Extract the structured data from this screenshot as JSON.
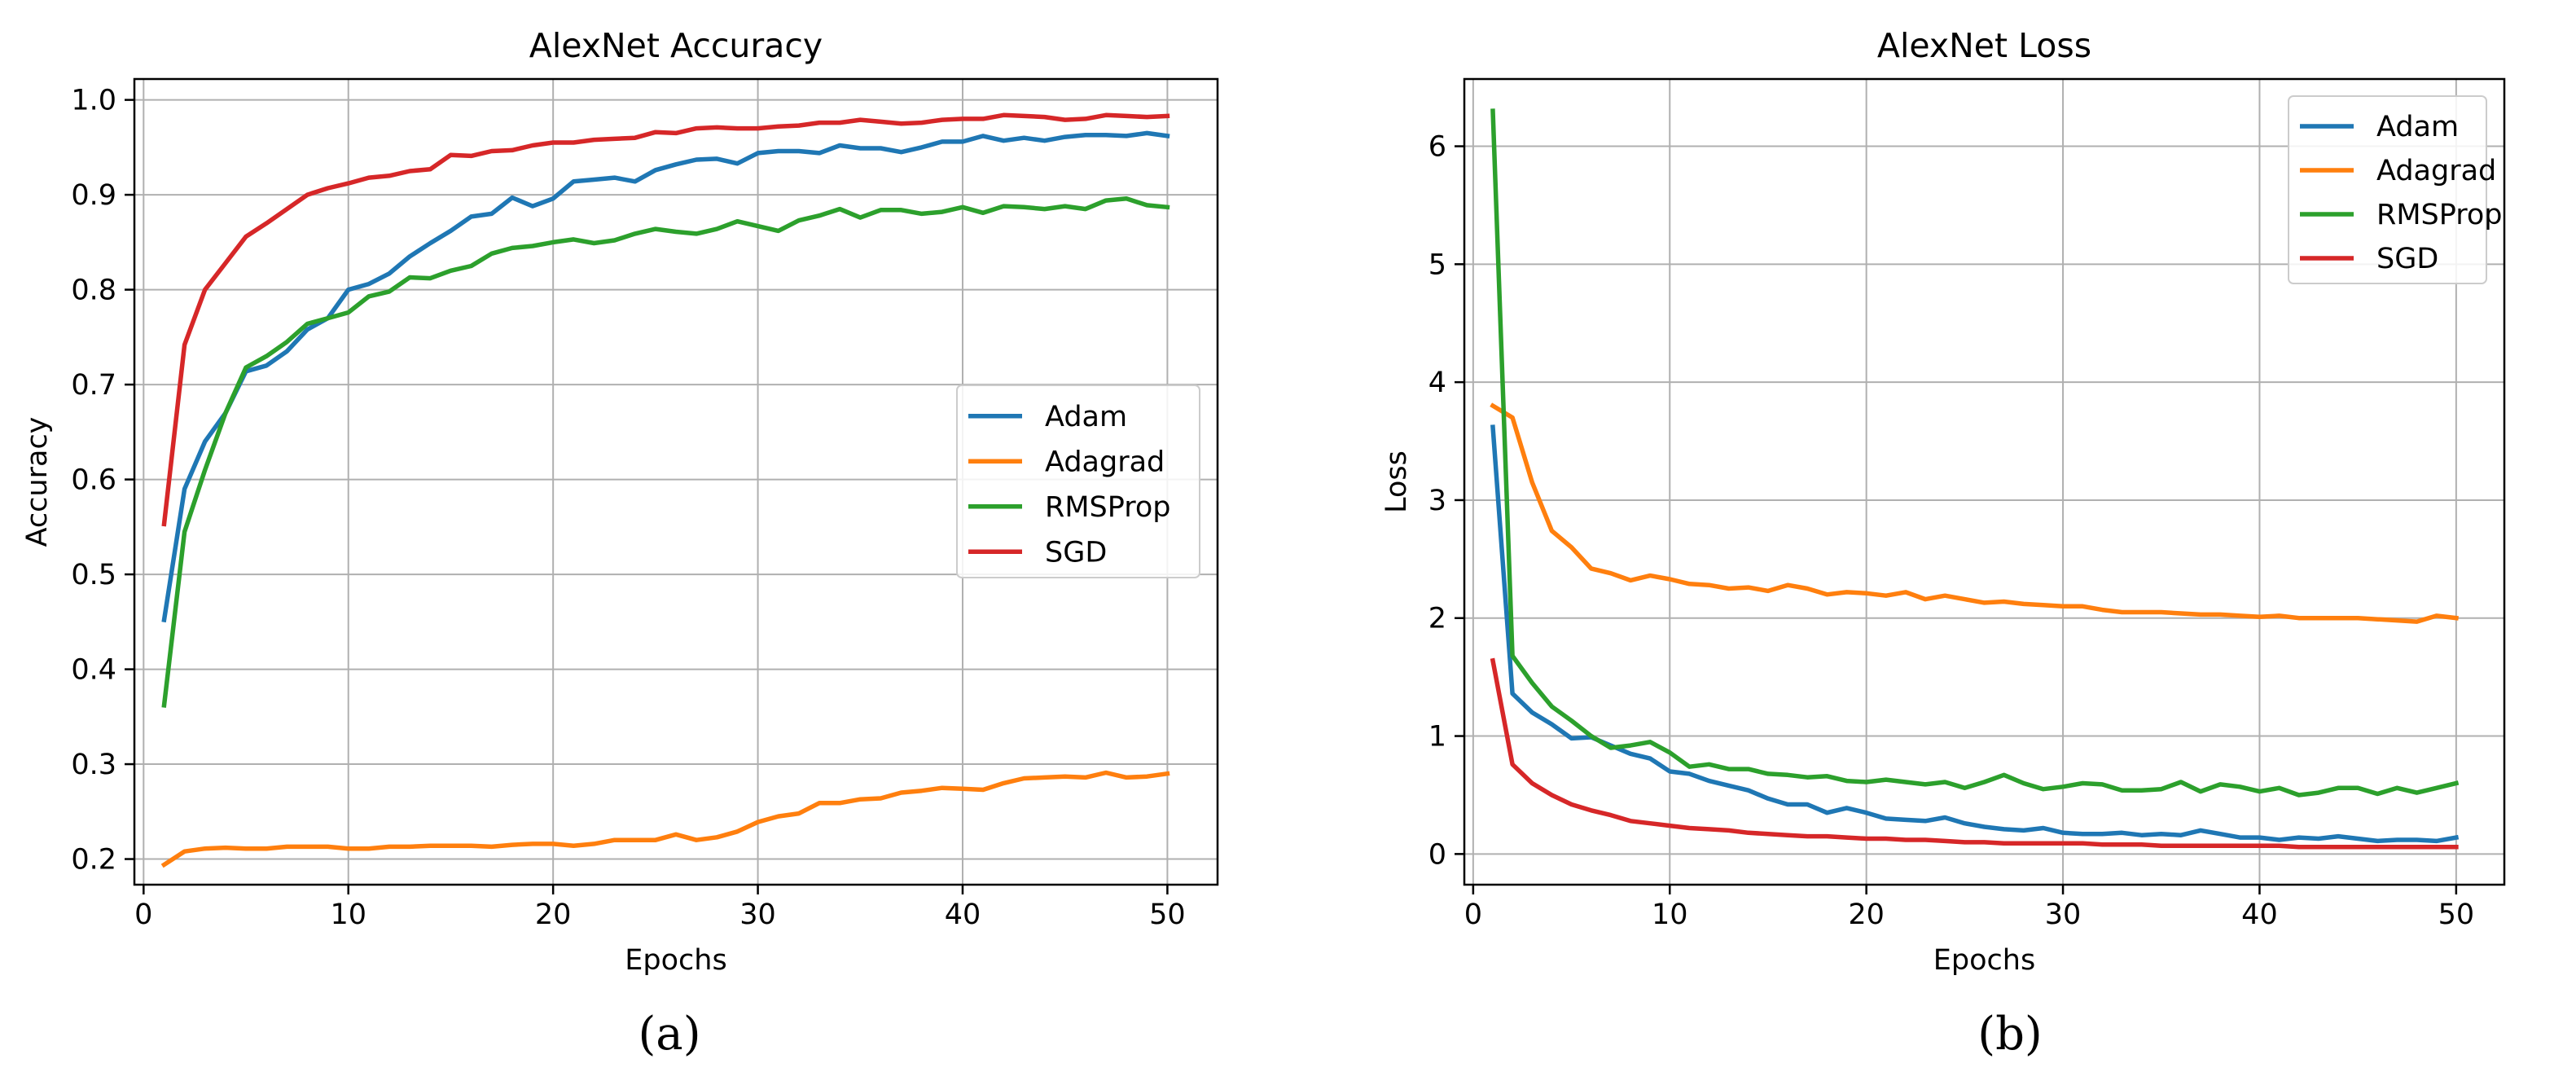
{
  "colors": {
    "Adam": "#1f77b4",
    "Adagrad": "#ff7f0e",
    "RMSProp": "#2ca02c",
    "SGD": "#d62728"
  },
  "chart_data": [
    {
      "type": "line",
      "title": "AlexNet Accuracy",
      "xlabel": "Epochs",
      "ylabel": "Accuracy",
      "caption": "(a)",
      "xlim": [
        -0.45,
        52.45
      ],
      "ylim": [
        0.173,
        1.022
      ],
      "xticks": [
        0,
        10,
        20,
        30,
        40,
        50
      ],
      "xtick_labels": [
        "0",
        "10",
        "20",
        "30",
        "40",
        "50"
      ],
      "yticks": [
        0.2,
        0.3,
        0.4,
        0.5,
        0.6,
        0.7,
        0.8,
        0.9,
        1.0
      ],
      "ytick_labels": [
        "0.2",
        "0.3",
        "0.4",
        "0.5",
        "0.6",
        "0.7",
        "0.8",
        "0.9",
        "1.0"
      ],
      "grid": true,
      "legend_position": "center-right",
      "x": [
        1,
        2,
        3,
        4,
        5,
        6,
        7,
        8,
        9,
        10,
        11,
        12,
        13,
        14,
        15,
        16,
        17,
        18,
        19,
        20,
        21,
        22,
        23,
        24,
        25,
        26,
        27,
        28,
        29,
        30,
        31,
        32,
        33,
        34,
        35,
        36,
        37,
        38,
        39,
        40,
        41,
        42,
        43,
        44,
        45,
        46,
        47,
        48,
        49,
        50
      ],
      "series": [
        {
          "name": "Adam",
          "values": [
            0.452,
            0.59,
            0.64,
            0.67,
            0.714,
            0.72,
            0.735,
            0.758,
            0.77,
            0.8,
            0.806,
            0.817,
            0.835,
            0.849,
            0.862,
            0.877,
            0.88,
            0.897,
            0.888,
            0.896,
            0.914,
            0.916,
            0.918,
            0.914,
            0.926,
            0.932,
            0.937,
            0.938,
            0.933,
            0.944,
            0.946,
            0.946,
            0.944,
            0.952,
            0.949,
            0.949,
            0.945,
            0.95,
            0.956,
            0.956,
            0.962,
            0.957,
            0.96,
            0.957,
            0.961,
            0.963,
            0.963,
            0.962,
            0.965,
            0.962
          ]
        },
        {
          "name": "Adagrad",
          "values": [
            0.194,
            0.208,
            0.211,
            0.212,
            0.211,
            0.211,
            0.213,
            0.213,
            0.213,
            0.211,
            0.211,
            0.213,
            0.213,
            0.214,
            0.214,
            0.214,
            0.213,
            0.215,
            0.216,
            0.216,
            0.214,
            0.216,
            0.22,
            0.22,
            0.22,
            0.226,
            0.22,
            0.223,
            0.229,
            0.239,
            0.245,
            0.248,
            0.259,
            0.259,
            0.263,
            0.264,
            0.27,
            0.272,
            0.275,
            0.274,
            0.273,
            0.28,
            0.285,
            0.286,
            0.287,
            0.286,
            0.291,
            0.286,
            0.287,
            0.29
          ]
        },
        {
          "name": "RMSProp",
          "values": [
            0.362,
            0.545,
            0.61,
            0.67,
            0.718,
            0.73,
            0.745,
            0.764,
            0.77,
            0.776,
            0.793,
            0.798,
            0.813,
            0.812,
            0.82,
            0.825,
            0.838,
            0.844,
            0.846,
            0.85,
            0.853,
            0.849,
            0.852,
            0.859,
            0.864,
            0.861,
            0.859,
            0.864,
            0.872,
            0.867,
            0.862,
            0.873,
            0.878,
            0.885,
            0.876,
            0.884,
            0.884,
            0.88,
            0.882,
            0.887,
            0.881,
            0.888,
            0.887,
            0.885,
            0.888,
            0.885,
            0.894,
            0.896,
            0.889,
            0.887
          ]
        },
        {
          "name": "SGD",
          "values": [
            0.553,
            0.742,
            0.8,
            0.828,
            0.856,
            0.87,
            0.885,
            0.9,
            0.907,
            0.912,
            0.918,
            0.92,
            0.925,
            0.927,
            0.942,
            0.941,
            0.946,
            0.947,
            0.952,
            0.955,
            0.955,
            0.958,
            0.959,
            0.96,
            0.966,
            0.965,
            0.97,
            0.971,
            0.97,
            0.97,
            0.972,
            0.973,
            0.976,
            0.976,
            0.979,
            0.977,
            0.975,
            0.976,
            0.979,
            0.98,
            0.98,
            0.984,
            0.983,
            0.982,
            0.979,
            0.98,
            0.984,
            0.983,
            0.982,
            0.983
          ]
        }
      ]
    },
    {
      "type": "line",
      "title": "AlexNet Loss",
      "xlabel": "Epochs",
      "ylabel": "Loss",
      "caption": "(b)",
      "xlim": [
        -0.45,
        52.45
      ],
      "ylim": [
        -0.26,
        6.57
      ],
      "xticks": [
        0,
        10,
        20,
        30,
        40,
        50
      ],
      "xtick_labels": [
        "0",
        "10",
        "20",
        "30",
        "40",
        "50"
      ],
      "yticks": [
        0,
        1,
        2,
        3,
        4,
        5,
        6
      ],
      "ytick_labels": [
        "0",
        "1",
        "2",
        "3",
        "4",
        "5",
        "6"
      ],
      "grid": true,
      "legend_position": "top-right",
      "x": [
        1,
        2,
        3,
        4,
        5,
        6,
        7,
        8,
        9,
        10,
        11,
        12,
        13,
        14,
        15,
        16,
        17,
        18,
        19,
        20,
        21,
        22,
        23,
        24,
        25,
        26,
        27,
        28,
        29,
        30,
        31,
        32,
        33,
        34,
        35,
        36,
        37,
        38,
        39,
        40,
        41,
        42,
        43,
        44,
        45,
        46,
        47,
        48,
        49,
        50
      ],
      "series": [
        {
          "name": "Adam",
          "values": [
            3.62,
            1.36,
            1.2,
            1.1,
            0.98,
            0.99,
            0.92,
            0.85,
            0.81,
            0.7,
            0.68,
            0.62,
            0.58,
            0.54,
            0.47,
            0.42,
            0.42,
            0.35,
            0.39,
            0.35,
            0.3,
            0.29,
            0.28,
            0.31,
            0.26,
            0.23,
            0.21,
            0.2,
            0.22,
            0.18,
            0.17,
            0.17,
            0.18,
            0.16,
            0.17,
            0.16,
            0.2,
            0.17,
            0.14,
            0.14,
            0.12,
            0.14,
            0.13,
            0.15,
            0.13,
            0.11,
            0.12,
            0.12,
            0.11,
            0.14
          ]
        },
        {
          "name": "Adagrad",
          "values": [
            3.8,
            3.7,
            3.15,
            2.74,
            2.6,
            2.42,
            2.38,
            2.32,
            2.36,
            2.33,
            2.29,
            2.28,
            2.25,
            2.26,
            2.23,
            2.28,
            2.25,
            2.2,
            2.22,
            2.21,
            2.19,
            2.22,
            2.16,
            2.19,
            2.16,
            2.13,
            2.14,
            2.12,
            2.11,
            2.1,
            2.1,
            2.07,
            2.05,
            2.05,
            2.05,
            2.04,
            2.03,
            2.03,
            2.02,
            2.01,
            2.02,
            2.0,
            2.0,
            2.0,
            2.0,
            1.99,
            1.98,
            1.97,
            2.02,
            2.0
          ]
        },
        {
          "name": "RMSProp",
          "values": [
            6.3,
            1.68,
            1.45,
            1.25,
            1.13,
            1.0,
            0.9,
            0.92,
            0.95,
            0.86,
            0.74,
            0.76,
            0.72,
            0.72,
            0.68,
            0.67,
            0.65,
            0.66,
            0.62,
            0.61,
            0.63,
            0.61,
            0.59,
            0.61,
            0.56,
            0.61,
            0.67,
            0.6,
            0.55,
            0.57,
            0.6,
            0.59,
            0.54,
            0.54,
            0.55,
            0.61,
            0.53,
            0.59,
            0.57,
            0.53,
            0.56,
            0.5,
            0.52,
            0.56,
            0.56,
            0.51,
            0.56,
            0.52,
            0.56,
            0.6
          ]
        },
        {
          "name": "SGD",
          "values": [
            1.64,
            0.76,
            0.6,
            0.5,
            0.42,
            0.37,
            0.33,
            0.28,
            0.26,
            0.24,
            0.22,
            0.21,
            0.2,
            0.18,
            0.17,
            0.16,
            0.15,
            0.15,
            0.14,
            0.13,
            0.13,
            0.12,
            0.12,
            0.11,
            0.1,
            0.1,
            0.09,
            0.09,
            0.09,
            0.09,
            0.09,
            0.08,
            0.08,
            0.08,
            0.07,
            0.07,
            0.07,
            0.07,
            0.07,
            0.07,
            0.07,
            0.06,
            0.06,
            0.06,
            0.06,
            0.06,
            0.06,
            0.06,
            0.06,
            0.06
          ]
        }
      ]
    }
  ]
}
